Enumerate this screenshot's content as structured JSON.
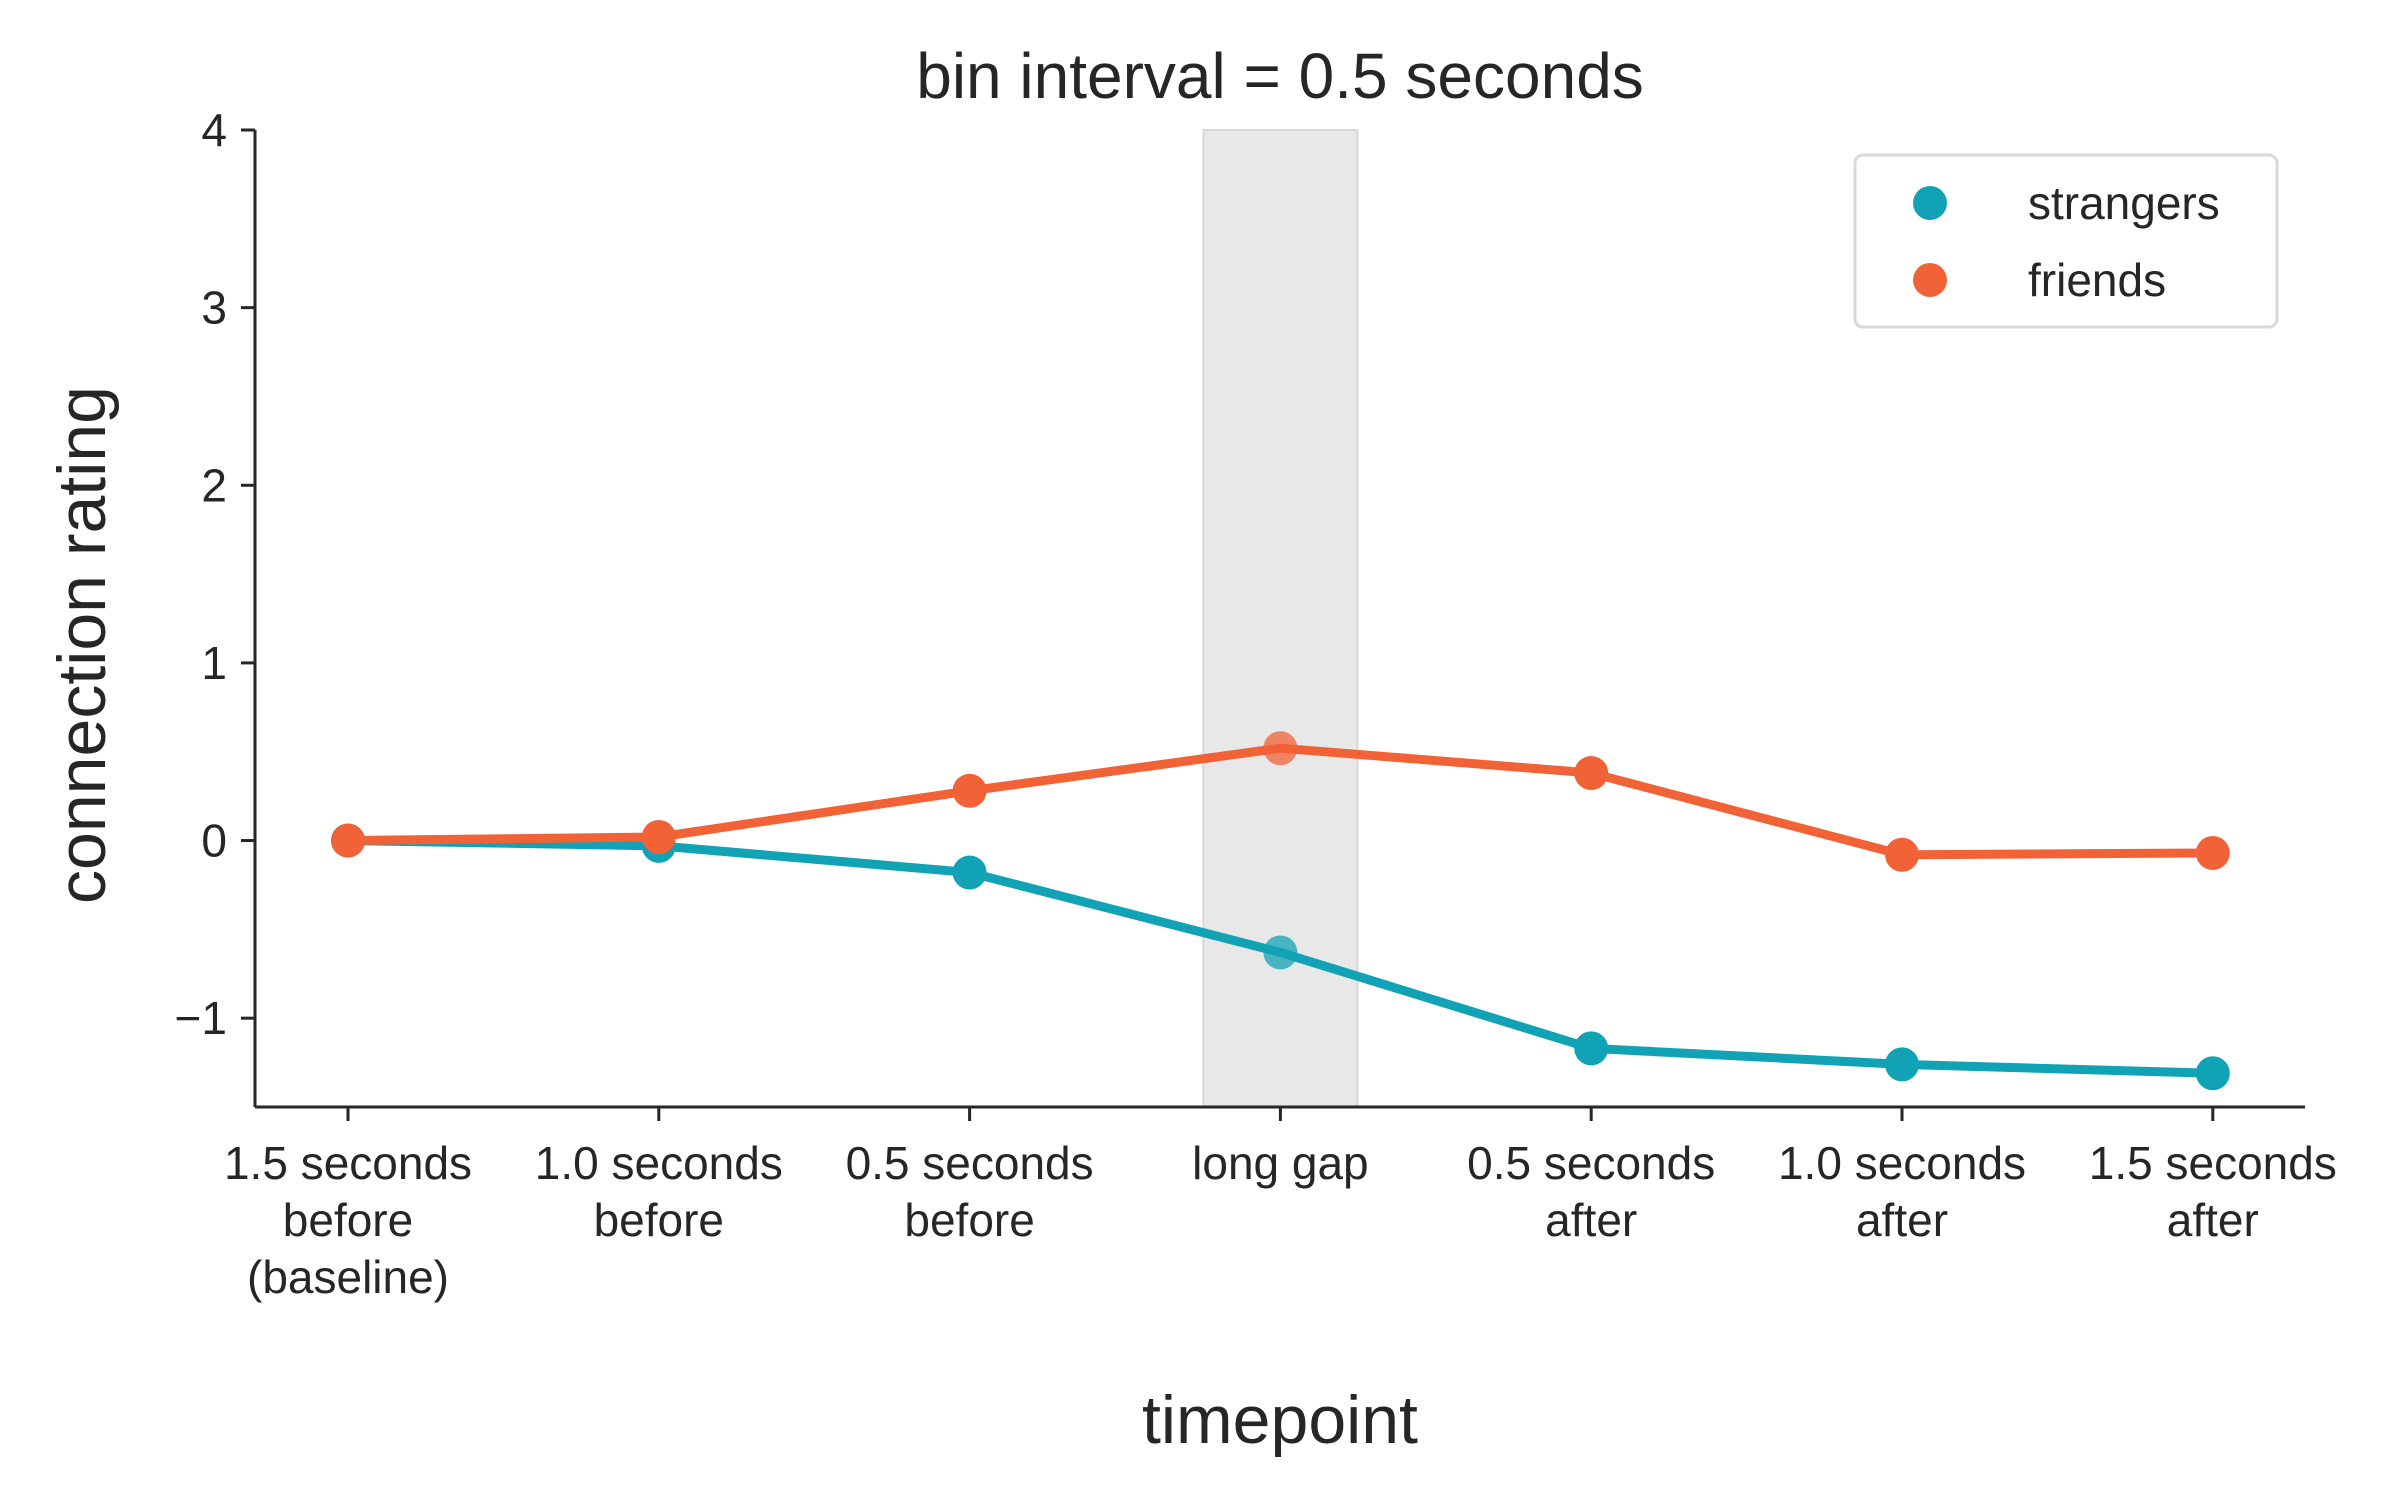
{
  "chart_data": {
    "type": "line",
    "title": "bin interval = 0.5 seconds",
    "xlabel": "timepoint",
    "ylabel": "connection rating",
    "categories": [
      [
        "1.5 seconds",
        "before",
        "(baseline)"
      ],
      [
        "1.0 seconds",
        "before"
      ],
      [
        "0.5 seconds",
        "before"
      ],
      [
        "long gap"
      ],
      [
        "0.5 seconds",
        "after"
      ],
      [
        "1.0 seconds",
        "after"
      ],
      [
        "1.5 seconds",
        "after"
      ]
    ],
    "yticks": [
      "−1",
      "0",
      "1",
      "2",
      "3",
      "4"
    ],
    "ylim": [
      -1.5,
      4
    ],
    "highlight_category": "long gap",
    "series": [
      {
        "name": "strangers",
        "color": "#11a3b5",
        "values": [
          0.0,
          -0.03,
          -0.18,
          -0.63,
          -1.17,
          -1.26,
          -1.31
        ]
      },
      {
        "name": "friends",
        "color": "#f26237",
        "values": [
          0.0,
          0.02,
          0.28,
          0.52,
          0.38,
          -0.08,
          -0.07
        ]
      }
    ],
    "legend_position": "top-right",
    "grid": false
  }
}
